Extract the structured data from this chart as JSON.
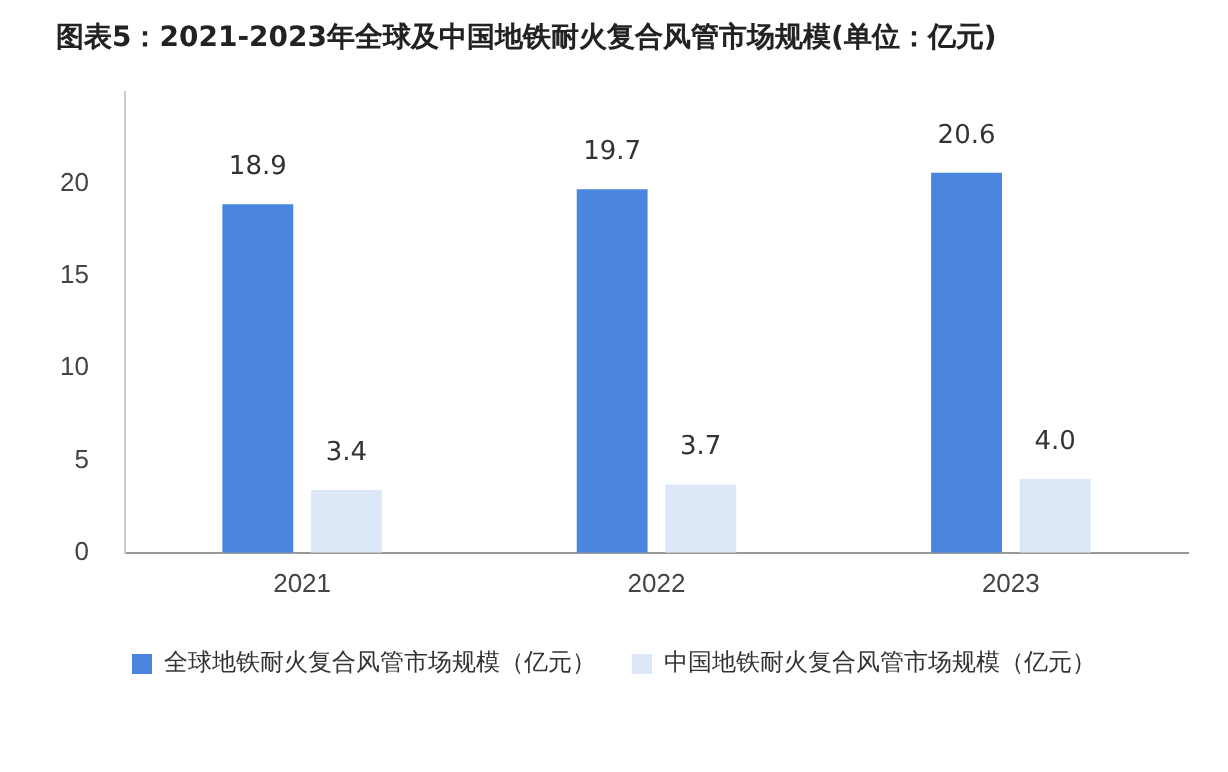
{
  "chart_data": {
    "type": "bar",
    "title": "图表5：2021-2023年全球及中国地铁耐火复合风管市场规模(单位：亿元)",
    "categories": [
      "2021",
      "2022",
      "2023"
    ],
    "series": [
      {
        "name": "全球地铁耐火复合风管市场规模（亿元）",
        "color": "#4a86e0",
        "values": [
          18.9,
          19.7,
          20.6
        ],
        "value_labels": [
          "18.9",
          "19.7",
          "20.6"
        ]
      },
      {
        "name": "中国地铁耐火复合风管市场规模（亿元）",
        "color": "#dce8f8",
        "values": [
          3.4,
          3.7,
          4.0
        ],
        "value_labels": [
          "3.4",
          "3.7",
          "4.0"
        ]
      }
    ],
    "ylim": [
      0,
      25
    ],
    "yticks": [
      0,
      5,
      10,
      15,
      20
    ],
    "grid": false,
    "legend": "bottom"
  }
}
